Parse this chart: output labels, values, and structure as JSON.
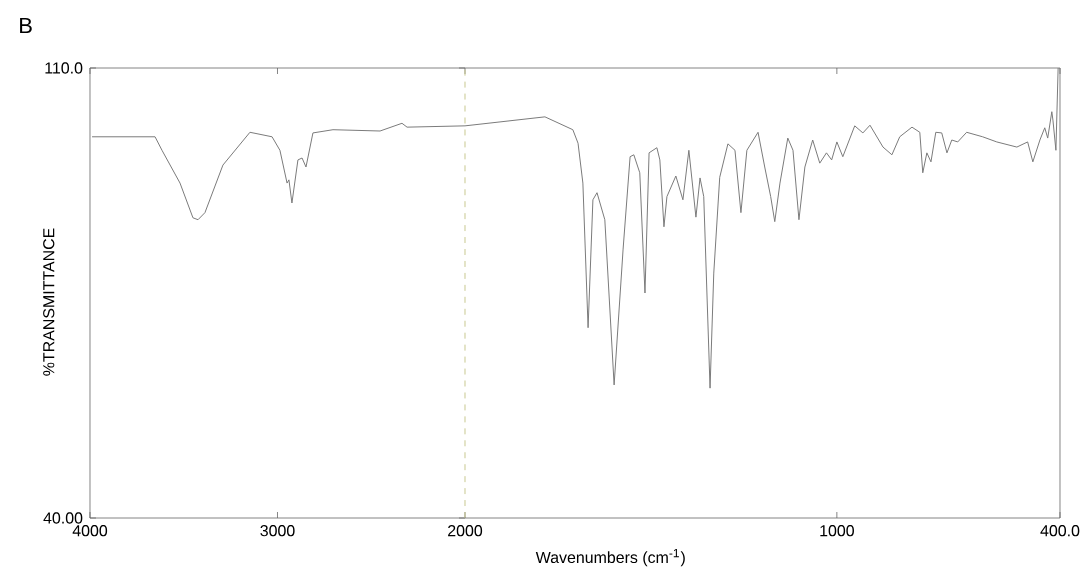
{
  "chart_data": [
    {
      "type": "line",
      "title": "B",
      "ylabel": "%TRANSMITTANCE",
      "color": "#7a7a7a",
      "x": [
        3989,
        3653,
        3616,
        3520,
        3451,
        3424,
        3387,
        3291,
        3147,
        3029,
        2987,
        2949,
        2939,
        2923,
        2891,
        2869,
        2848,
        2811,
        2704,
        2453,
        2336,
        2309,
        2000
      ],
      "values": [
        99.3,
        99.3,
        97.2,
        92.1,
        86.7,
        86.4,
        87.5,
        94.9,
        100.0,
        99.3,
        97.2,
        92.1,
        92.6,
        89.0,
        95.7,
        96.0,
        94.6,
        99.9,
        100.4,
        100.2,
        101.4,
        100.8,
        101.0
      ],
      "xlim": [
        4000,
        2000
      ],
      "xticks": [
        4000,
        3000,
        2000
      ],
      "ylim": [
        40,
        110
      ],
      "yticks": [
        {
          "value": 40,
          "label": "40.00"
        },
        {
          "value": 110,
          "label": "110.0"
        }
      ],
      "ref_lines": [
        {
          "axis": "x",
          "value": 2000,
          "color": "#c8c890",
          "line_style": "dashed"
        }
      ]
    },
    {
      "type": "line",
      "xlabel": "Wavenumbers (cm$^{-1}$)",
      "color": "#7a7a7a",
      "x": [
        2000,
        1785,
        1710,
        1696,
        1683,
        1669,
        1656,
        1645,
        1624,
        1599,
        1575,
        1556,
        1546,
        1530,
        1516,
        1505,
        1484,
        1476,
        1465,
        1457,
        1433,
        1414,
        1398,
        1379,
        1368,
        1358,
        1341,
        1331,
        1315,
        1293,
        1274,
        1258,
        1242,
        1212,
        1194,
        1178,
        1167,
        1153,
        1132,
        1118,
        1102,
        1086,
        1065,
        1046,
        1028,
        1014,
        1000,
        984,
        952,
        930,
        911,
        876,
        852,
        831,
        798,
        777,
        769,
        758,
        747,
        734,
        718,
        704,
        691,
        675,
        651,
        608,
        570,
        516,
        487,
        473,
        454,
        441,
        433,
        422,
        419,
        411,
        405
      ],
      "values": [
        101.0,
        102.4,
        100.4,
        98.3,
        92.1,
        69.6,
        89.5,
        90.6,
        86.4,
        60.7,
        81.7,
        96.2,
        96.5,
        93.7,
        75.0,
        96.8,
        97.6,
        95.7,
        85.3,
        90.0,
        93.2,
        89.5,
        97.2,
        86.8,
        92.9,
        90.0,
        60.2,
        78.1,
        93.0,
        98.2,
        97.2,
        87.5,
        97.2,
        100.0,
        94.6,
        90.0,
        86.1,
        92.1,
        99.1,
        97.2,
        86.4,
        94.6,
        98.8,
        95.2,
        96.8,
        95.7,
        98.5,
        96.2,
        101.0,
        99.9,
        101.1,
        97.7,
        96.5,
        99.3,
        100.8,
        100.0,
        93.7,
        96.8,
        95.4,
        100.0,
        99.9,
        96.8,
        98.8,
        98.5,
        100.0,
        99.3,
        98.5,
        97.7,
        98.5,
        95.4,
        98.8,
        100.7,
        99.1,
        103.2,
        101.9,
        97.2,
        110.0
      ],
      "xlim": [
        2000,
        400
      ],
      "xticks": [
        1000,
        {
          "value": 400,
          "label": "400.0"
        }
      ],
      "ylim": [
        40,
        110
      ],
      "tick_labels": "x"
    }
  ]
}
